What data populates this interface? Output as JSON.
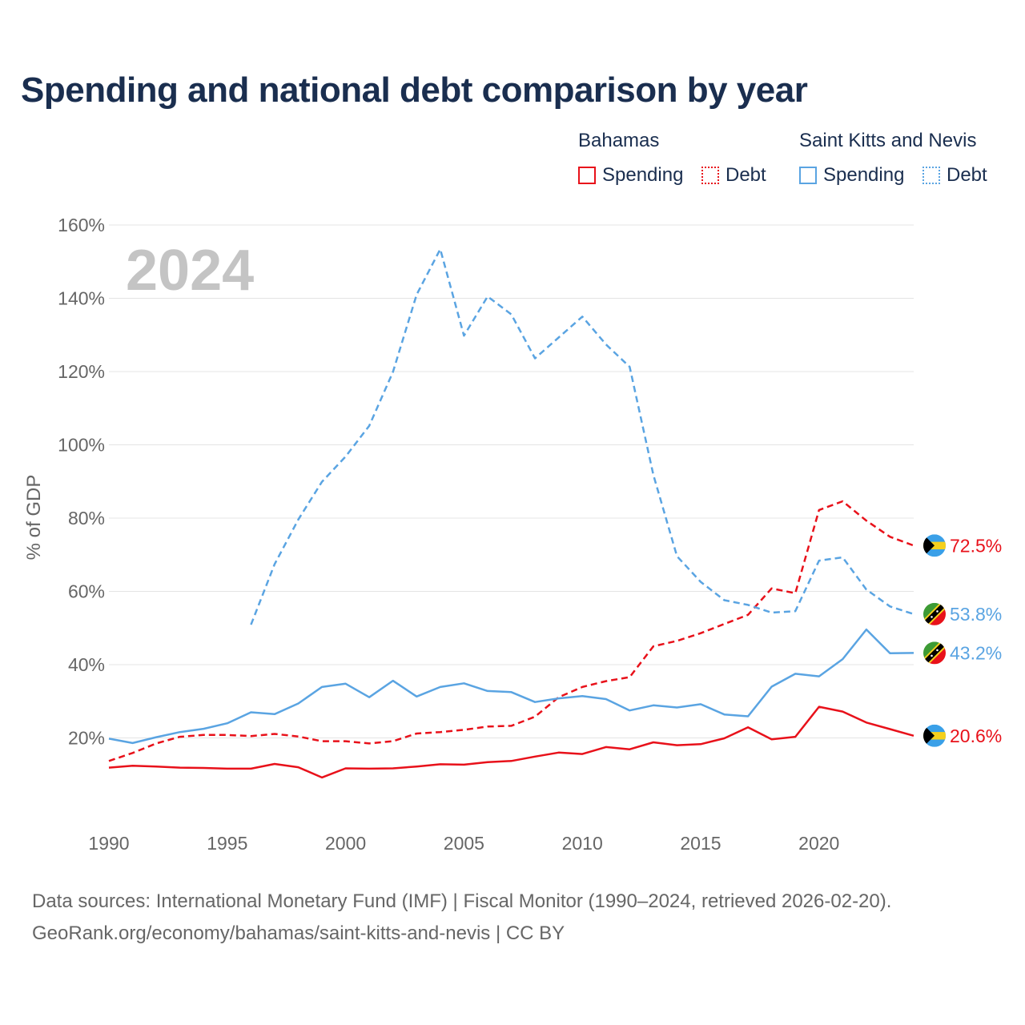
{
  "title": "Spending and national debt comparison by year",
  "legend": {
    "groups": [
      {
        "name": "Bahamas",
        "color": "#e8111a",
        "items": [
          {
            "label": "Spending",
            "style": "solid"
          },
          {
            "label": "Debt",
            "style": "dotted"
          }
        ]
      },
      {
        "name": "Saint Kitts and Nevis",
        "color": "#5aa4e2",
        "items": [
          {
            "label": "Spending",
            "style": "solid"
          },
          {
            "label": "Debt",
            "style": "dotted"
          }
        ]
      }
    ]
  },
  "year_stamp": "2024",
  "source": {
    "line1": "Data sources: International Monetary Fund (IMF) | Fiscal Monitor (1990–2024, retrieved 2026-02-20).",
    "line2": "GeoRank.org/economy/bahamas/saint-kitts-and-nevis | CC BY"
  },
  "chart_data": {
    "type": "line",
    "ylabel": "% of GDP",
    "xlabel": "",
    "xlim": [
      1990,
      2024
    ],
    "ylim": [
      0,
      160
    ],
    "x_ticks": [
      "1990",
      "1995",
      "2000",
      "2005",
      "2010",
      "2015",
      "2020"
    ],
    "y_ticks": [
      "20%",
      "40%",
      "60%",
      "80%",
      "100%",
      "120%",
      "140%",
      "160%"
    ],
    "grid": true,
    "series": [
      {
        "name": "Bahamas Spending",
        "country": "Bahamas",
        "measure": "Spending",
        "color": "#e8111a",
        "dash": "solid",
        "end_label": "20.6%",
        "flag": "bahamas",
        "x": [
          1990,
          1991,
          1992,
          1993,
          1994,
          1995,
          1996,
          1997,
          1998,
          1999,
          2000,
          2001,
          2002,
          2003,
          2004,
          2005,
          2006,
          2007,
          2008,
          2009,
          2010,
          2011,
          2012,
          2013,
          2014,
          2015,
          2016,
          2017,
          2018,
          2019,
          2020,
          2021,
          2022,
          2023,
          2024
        ],
        "values": [
          11.9,
          12.4,
          12.2,
          11.9,
          11.8,
          11.6,
          11.6,
          12.9,
          12.0,
          9.2,
          11.7,
          11.6,
          11.7,
          12.2,
          12.8,
          12.7,
          13.4,
          13.7,
          14.9,
          16.0,
          15.6,
          17.5,
          16.9,
          18.8,
          18.0,
          18.3,
          19.9,
          22.9,
          19.6,
          20.3,
          28.5,
          27.2,
          24.2,
          22.4,
          20.6
        ]
      },
      {
        "name": "Bahamas Debt",
        "country": "Bahamas",
        "measure": "Debt",
        "color": "#e8111a",
        "dash": "dashed",
        "end_label": "72.5%",
        "flag": "bahamas",
        "x": [
          1990,
          1991,
          1992,
          1993,
          1994,
          1995,
          1996,
          1997,
          1998,
          1999,
          2000,
          2001,
          2002,
          2003,
          2004,
          2005,
          2006,
          2007,
          2008,
          2009,
          2010,
          2011,
          2012,
          2013,
          2014,
          2015,
          2016,
          2017,
          2018,
          2019,
          2020,
          2021,
          2022,
          2023,
          2024
        ],
        "values": [
          13.7,
          15.9,
          18.5,
          20.3,
          20.8,
          20.8,
          20.5,
          21.1,
          20.4,
          19.1,
          19.1,
          18.5,
          19.1,
          21.2,
          21.6,
          22.2,
          23.1,
          23.3,
          25.8,
          31.1,
          33.9,
          35.5,
          36.6,
          45.0,
          46.5,
          48.6,
          51.1,
          53.6,
          60.8,
          59.5,
          82.2,
          84.6,
          79.3,
          74.9,
          72.5
        ]
      },
      {
        "name": "Saint Kitts and Nevis Spending",
        "country": "Saint Kitts and Nevis",
        "measure": "Spending",
        "color": "#5aa4e2",
        "dash": "solid",
        "end_label": "43.2%",
        "flag": "saint-kitts-and-nevis",
        "x": [
          1990,
          1991,
          1992,
          1993,
          1994,
          1995,
          1996,
          1997,
          1998,
          1999,
          2000,
          2001,
          2002,
          2003,
          2004,
          2005,
          2006,
          2007,
          2008,
          2009,
          2010,
          2011,
          2012,
          2013,
          2014,
          2015,
          2016,
          2017,
          2018,
          2019,
          2020,
          2021,
          2022,
          2023,
          2024
        ],
        "values": [
          19.8,
          18.6,
          20.2,
          21.6,
          22.5,
          24.0,
          27.0,
          26.5,
          29.4,
          33.9,
          34.8,
          31.1,
          35.6,
          31.3,
          33.9,
          34.9,
          32.8,
          32.5,
          29.8,
          30.8,
          31.4,
          30.6,
          27.5,
          28.9,
          28.3,
          29.2,
          26.4,
          25.9,
          34.0,
          37.5,
          36.8,
          41.5,
          49.6,
          43.1,
          43.2
        ]
      },
      {
        "name": "Saint Kitts and Nevis Debt",
        "country": "Saint Kitts and Nevis",
        "measure": "Debt",
        "color": "#5aa4e2",
        "dash": "dashed",
        "end_label": "53.8%",
        "flag": "saint-kitts-and-nevis",
        "x": [
          1996,
          1997,
          1998,
          1999,
          2000,
          2001,
          2002,
          2003,
          2004,
          2005,
          2006,
          2007,
          2008,
          2009,
          2010,
          2011,
          2012,
          2013,
          2014,
          2015,
          2016,
          2017,
          2018,
          2019,
          2020,
          2021,
          2022,
          2023,
          2024
        ],
        "values": [
          50.9,
          67.4,
          79.6,
          89.9,
          96.8,
          105.2,
          119.9,
          141.0,
          153.4,
          129.8,
          140.5,
          135.6,
          123.6,
          129.3,
          135.0,
          127.4,
          121.3,
          91.8,
          69.6,
          62.6,
          57.6,
          56.3,
          54.2,
          54.6,
          68.4,
          69.3,
          60.5,
          55.9,
          53.8
        ]
      }
    ]
  }
}
